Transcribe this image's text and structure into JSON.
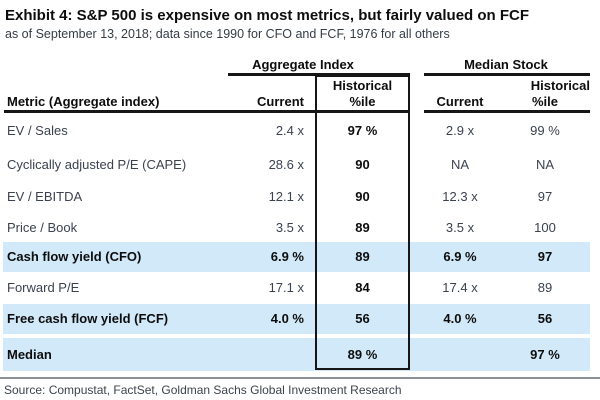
{
  "chart_data": {
    "type": "table",
    "title": "Exhibit 4: S&P 500 is expensive on most metrics, but fairly valued on FCF",
    "subtitle": "as of September 13, 2018; data since 1990 for CFO and FCF, 1976 for all others",
    "source": "Source: Compustat, FactSet, Goldman Sachs Global Investment Research",
    "group_headers": {
      "aggregate": "Aggregate Index",
      "median": "Median Stock"
    },
    "col_headers": {
      "metric": "Metric (Aggregate index)",
      "current": "Current",
      "historical": "Historical",
      "pctile": "%ile"
    },
    "rows": [
      {
        "metric": "EV / Sales",
        "agg_current": "2.4 x",
        "agg_pctile": "97 %",
        "med_current": "2.9 x",
        "med_pctile": "99 %",
        "highlight": false
      },
      {
        "metric": "Cyclically adjusted P/E (CAPE)",
        "agg_current": "28.6 x",
        "agg_pctile": "90",
        "med_current": "NA",
        "med_pctile": "NA",
        "highlight": false
      },
      {
        "metric": "EV / EBITDA",
        "agg_current": "12.1 x",
        "agg_pctile": "90",
        "med_current": "12.3 x",
        "med_pctile": "97",
        "highlight": false
      },
      {
        "metric": "Price / Book",
        "agg_current": "3.5 x",
        "agg_pctile": "89",
        "med_current": "3.5 x",
        "med_pctile": "100",
        "highlight": false
      },
      {
        "metric": "Cash flow yield (CFO)",
        "agg_current": "6.9 %",
        "agg_pctile": "89",
        "med_current": "6.9 %",
        "med_pctile": "97",
        "highlight": true
      },
      {
        "metric": "Forward P/E",
        "agg_current": "17.1 x",
        "agg_pctile": "84",
        "med_current": "17.4 x",
        "med_pctile": "89",
        "highlight": false
      },
      {
        "metric": "Free cash flow yield (FCF)",
        "agg_current": "4.0 %",
        "agg_pctile": "56",
        "med_current": "4.0 %",
        "med_pctile": "56",
        "highlight": true
      },
      {
        "metric": "Median",
        "agg_current": "",
        "agg_pctile": "89 %",
        "med_current": "",
        "med_pctile": "97 %",
        "highlight": true
      }
    ]
  },
  "colors": {
    "highlight_row": "#d2e9f9",
    "body_text": "#3a4150",
    "emphasis_text": "#0d0d0d",
    "rule": "#161616",
    "source_rule": "#8c9097"
  }
}
